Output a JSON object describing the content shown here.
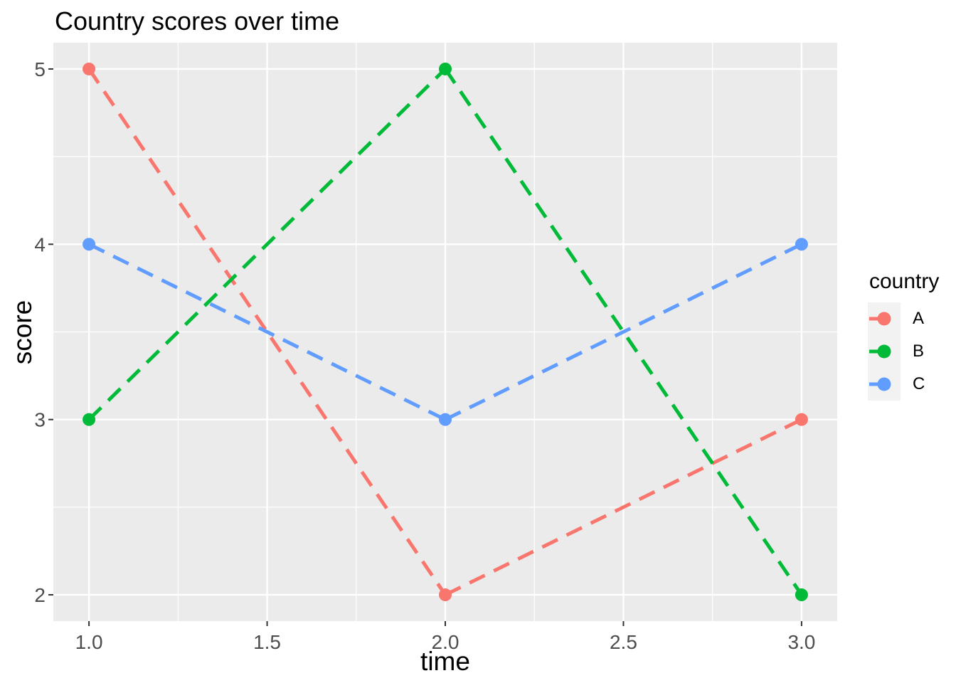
{
  "chart_data": {
    "type": "line",
    "title": "Country scores over time",
    "xlabel": "time",
    "ylabel": "score",
    "x": [
      1,
      2,
      3
    ],
    "series": [
      {
        "name": "A",
        "color": "#F8766D",
        "values": [
          5,
          2,
          3
        ]
      },
      {
        "name": "B",
        "color": "#00BA38",
        "values": [
          3,
          5,
          2
        ]
      },
      {
        "name": "C",
        "color": "#619CFF",
        "values": [
          4,
          3,
          4
        ]
      }
    ],
    "line_style": "dashed",
    "marker": "circle",
    "xlim": [
      0.9,
      3.1
    ],
    "ylim": [
      1.85,
      5.15
    ],
    "x_ticks": {
      "values": [
        1.0,
        1.5,
        2.0,
        2.5,
        3.0
      ],
      "labels": [
        "1.0",
        "1.5",
        "2.0",
        "2.5",
        "3.0"
      ]
    },
    "y_ticks": {
      "values": [
        2,
        3,
        4,
        5
      ],
      "labels": [
        "2",
        "3",
        "4",
        "5"
      ]
    },
    "x_minor": [
      1.25,
      1.75,
      2.25,
      2.75
    ],
    "y_minor": [
      2.5,
      3.5,
      4.5
    ],
    "grid": "major-and-minor-white-on-gray",
    "legend": {
      "title": "country",
      "position": "right",
      "entries": [
        "A",
        "B",
        "C"
      ]
    },
    "style": {
      "panel_bg": "#EBEBEB",
      "grid_color": "#FFFFFF",
      "tick_color": "#333333",
      "tick_label_color": "#4D4D4D",
      "text_color": "#000000",
      "legend_key_bg": "#F2F2F2"
    }
  }
}
